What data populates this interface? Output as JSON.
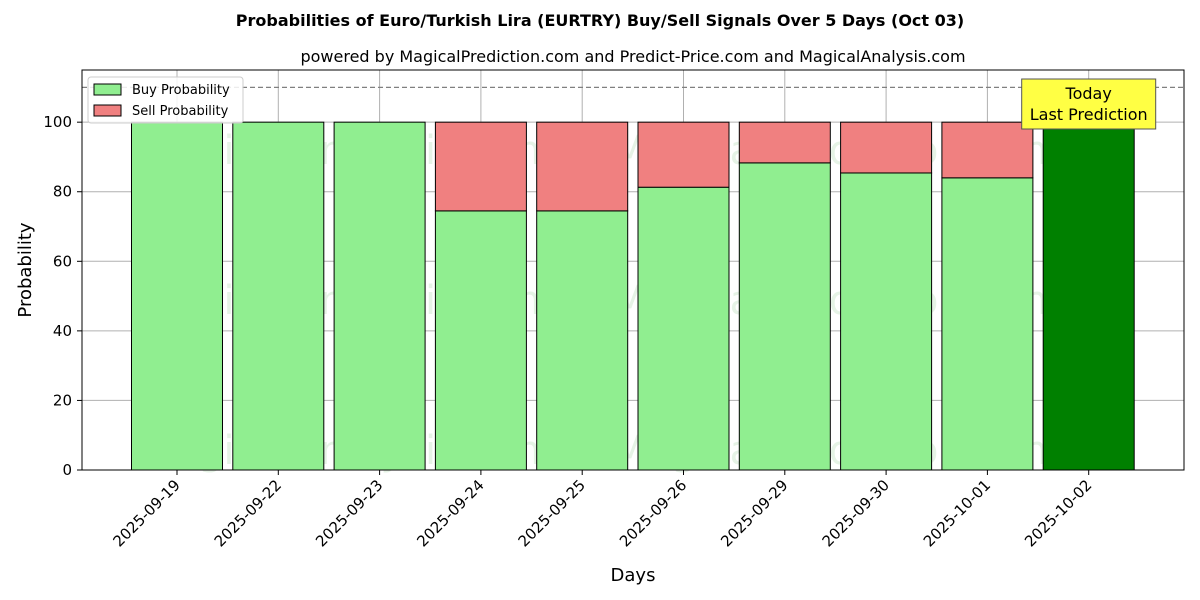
{
  "chart_data": {
    "type": "bar",
    "stacked": true,
    "title": "Probabilities of Euro/Turkish Lira (EURTRY) Buy/Sell Signals Over 5 Days (Oct 03)",
    "subtitle": "powered by MagicalPrediction.com and Predict-Price.com and MagicalAnalysis.com",
    "xlabel": "Days",
    "ylabel": "Probability",
    "ylim": [
      0,
      115
    ],
    "yticks": [
      0,
      20,
      40,
      60,
      80,
      100
    ],
    "grid": true,
    "legend_position": "top-left",
    "reference_line": {
      "y": 110,
      "style": "dashed"
    },
    "categories": [
      "2025-09-19",
      "2025-09-22",
      "2025-09-23",
      "2025-09-24",
      "2025-09-25",
      "2025-09-26",
      "2025-09-29",
      "2025-09-30",
      "2025-10-01",
      "2025-10-02"
    ],
    "series": [
      {
        "name": "Buy Probability",
        "color": "#90ee90",
        "values": [
          100,
          100,
          100,
          74.5,
          74.5,
          81.3,
          88.3,
          85.4,
          84.0,
          100
        ]
      },
      {
        "name": "Sell Probability",
        "color": "#f08080",
        "values": [
          0,
          0,
          0,
          25.5,
          25.5,
          18.7,
          11.7,
          14.6,
          16.0,
          0
        ]
      }
    ],
    "highlight": {
      "category": "2025-10-02",
      "color": "#008000"
    },
    "annotation": {
      "lines": [
        "Today",
        "Last Prediction"
      ],
      "background": "#ffff44"
    },
    "watermarks": [
      "MagicalAnalysis.com",
      "MagicalPrediction.com"
    ]
  }
}
